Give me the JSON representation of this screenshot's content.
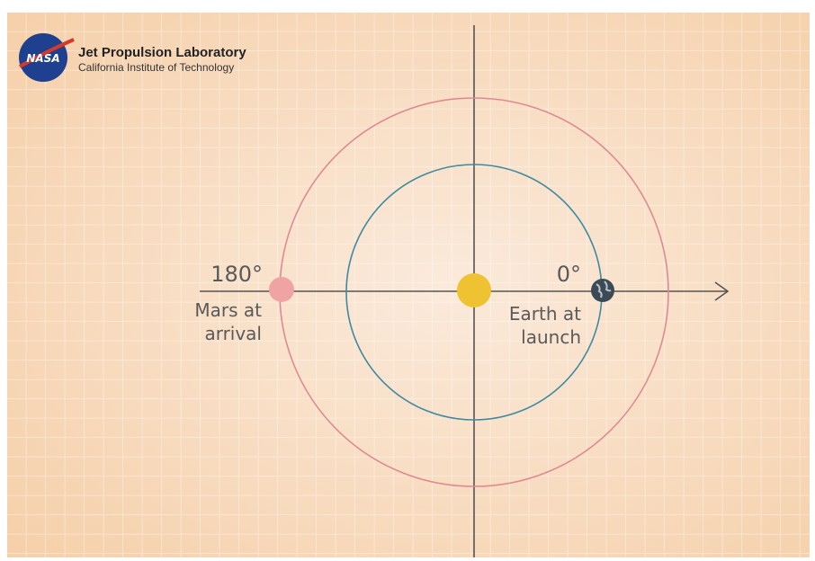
{
  "header": {
    "logo": "NASA",
    "title": "Jet Propulsion Laboratory",
    "subtitle": "California Institute of Technology"
  },
  "labels": {
    "mars_angle": "180°",
    "mars_caption": [
      "Mars at",
      "arrival"
    ],
    "earth_angle": "0°",
    "earth_caption": [
      "Earth at",
      "launch"
    ]
  }
}
